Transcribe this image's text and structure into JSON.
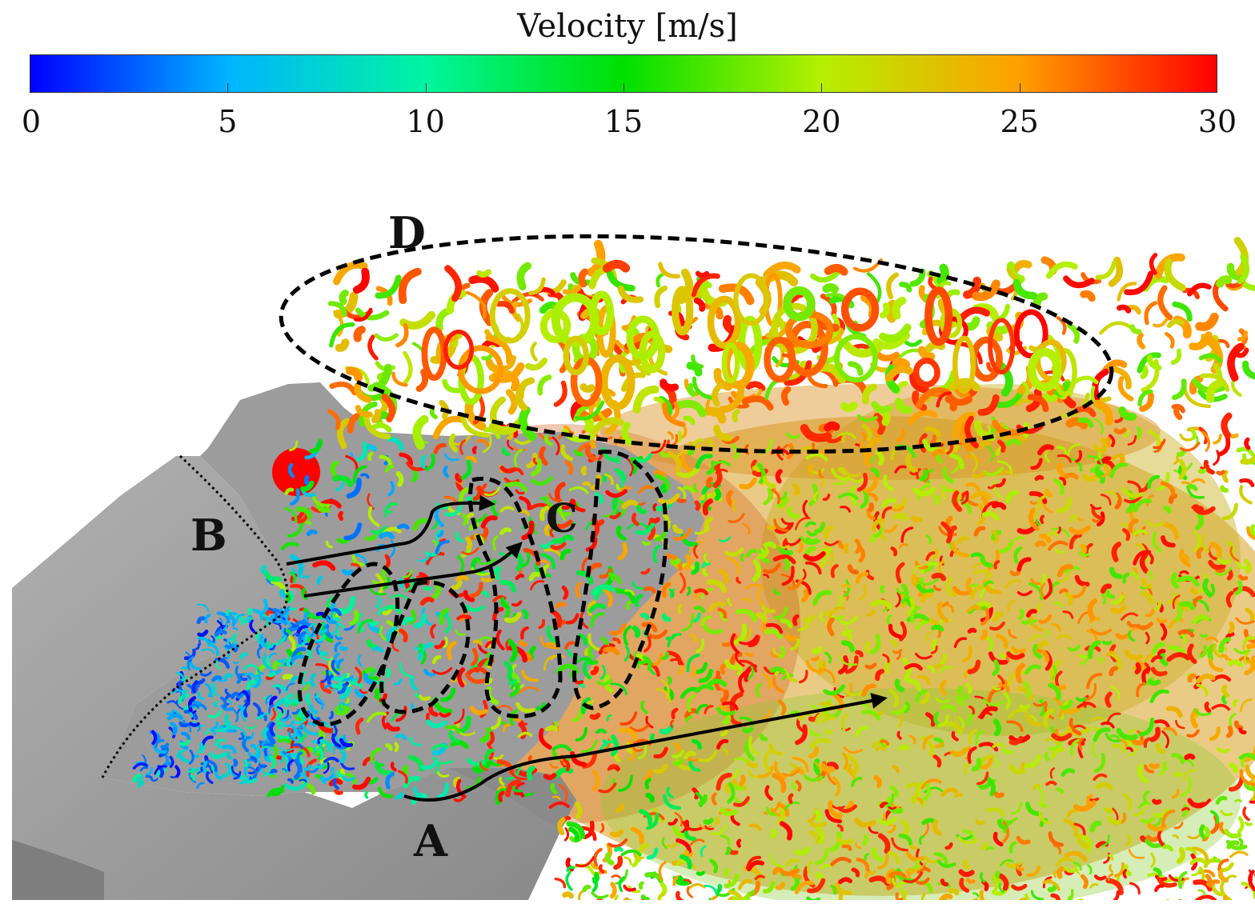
{
  "colorbar": {
    "title": "Velocity [m/s]",
    "ticks": [
      "0",
      "5",
      "10",
      "15",
      "20",
      "25",
      "30"
    ],
    "min": 0,
    "max": 30,
    "gradient_stops": [
      "#0000ff",
      "#00b4ff",
      "#00f5a0",
      "#00e000",
      "#b4f000",
      "#ffa000",
      "#ff0000"
    ]
  },
  "annotations": {
    "label_a": "A",
    "label_b": "B",
    "label_c": "C",
    "label_d": "D"
  },
  "colors": {
    "body": "#9a9a9a",
    "body_light": "#b8b8b8",
    "outline": "#000000"
  }
}
